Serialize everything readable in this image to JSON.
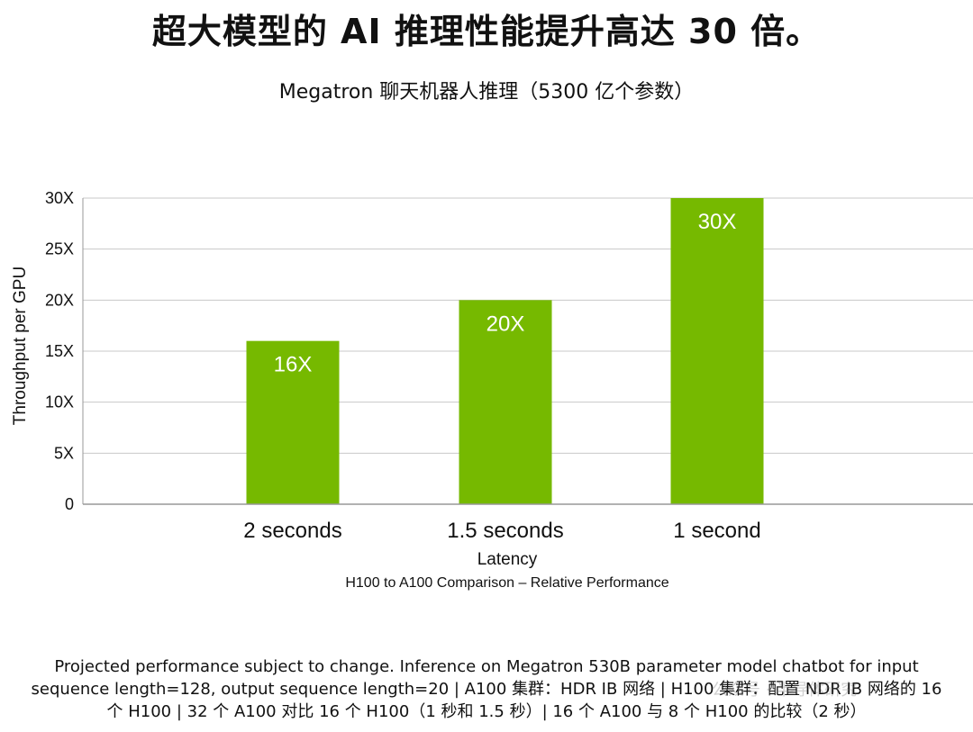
{
  "header": {
    "title": "超大模型的 AI 推理性能提升高达 30 倍。",
    "subtitle": "Megatron 聊天机器人推理（5300 亿个参数）"
  },
  "chart_data": {
    "type": "bar",
    "categories": [
      "2 seconds",
      "1.5 seconds",
      "1 second"
    ],
    "values": [
      16,
      20,
      30
    ],
    "data_labels": [
      "16X",
      "20X",
      "30X"
    ],
    "ylabel": "Throughput per GPU",
    "xlabel": "Latency",
    "caption": "H100 to A100 Comparison – Relative Performance",
    "ylim": [
      0,
      30
    ],
    "yticks": [
      0,
      5,
      10,
      15,
      20,
      25,
      30
    ],
    "ytick_labels": [
      "0",
      "5X",
      "10X",
      "15X",
      "20X",
      "25X",
      "30X"
    ],
    "grid": true,
    "bar_color": "#76b900",
    "label_color": "#ffffff"
  },
  "footnote": {
    "line1": "Projected performance subject to change. Inference on Megatron 530B parameter model chatbot for input",
    "line2": "sequence length=128, output sequence length=20 | A100 集群：HDR IB 网络 | H100 集群：配置 NDR IB 网络的 16",
    "line3": "个 H100 | 32 个 A100 对比 16 个 H100（1 秒和 1.5 秒）| 16 个 A100 与 8 个 H100 的比较（2 秒）"
  },
  "watermark": {
    "text": "公众号 · 半导体研究"
  }
}
